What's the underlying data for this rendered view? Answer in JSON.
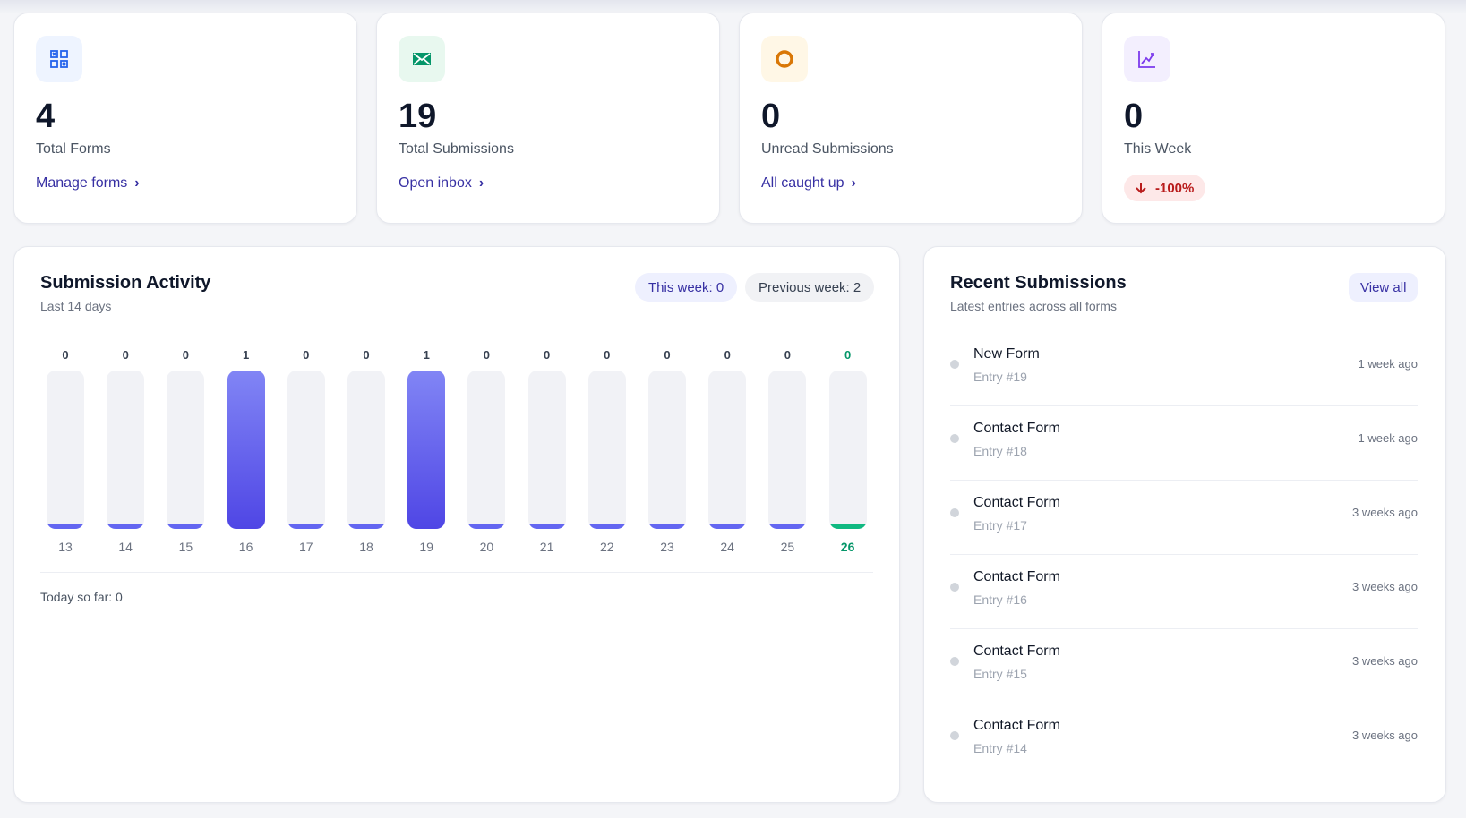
{
  "stats": [
    {
      "value": "4",
      "label": "Total Forms",
      "link": "Manage forms",
      "icon": "grid-icon",
      "icon_bg": "#eef4ff",
      "icon_color": "#2563eb"
    },
    {
      "value": "19",
      "label": "Total Submissions",
      "link": "Open inbox",
      "icon": "envelope-icon",
      "icon_bg": "#e8f8ef",
      "icon_color": "#059669"
    },
    {
      "value": "0",
      "label": "Unread Submissions",
      "link": "All caught up",
      "icon": "circle-icon",
      "icon_bg": "#fff7e6",
      "icon_color": "#d97706"
    },
    {
      "value": "0",
      "label": "This Week",
      "trend": "-100%",
      "icon": "chart-line-icon",
      "icon_bg": "#f3effe",
      "icon_color": "#7c3aed"
    }
  ],
  "activity": {
    "title": "Submission Activity",
    "subtitle": "Last 14 days",
    "this_week": "This week: 0",
    "previous_week": "Previous week: 2",
    "today_so_far": "Today so far: 0"
  },
  "chart_data": {
    "type": "bar",
    "categories": [
      "13",
      "14",
      "15",
      "16",
      "17",
      "18",
      "19",
      "20",
      "21",
      "22",
      "23",
      "24",
      "25",
      "26"
    ],
    "values": [
      0,
      0,
      0,
      1,
      0,
      0,
      1,
      0,
      0,
      0,
      0,
      0,
      0,
      0
    ],
    "highlight_category": "26",
    "ylim": [
      0,
      1
    ]
  },
  "recent": {
    "title": "Recent Submissions",
    "subtitle": "Latest entries across all forms",
    "view_all": "View all",
    "items": [
      {
        "name": "New Form",
        "entry": "Entry #19",
        "time": "1 week ago"
      },
      {
        "name": "Contact Form",
        "entry": "Entry #18",
        "time": "1 week ago"
      },
      {
        "name": "Contact Form",
        "entry": "Entry #17",
        "time": "3 weeks ago"
      },
      {
        "name": "Contact Form",
        "entry": "Entry #16",
        "time": "3 weeks ago"
      },
      {
        "name": "Contact Form",
        "entry": "Entry #15",
        "time": "3 weeks ago"
      },
      {
        "name": "Contact Form",
        "entry": "Entry #14",
        "time": "3 weeks ago"
      }
    ]
  }
}
